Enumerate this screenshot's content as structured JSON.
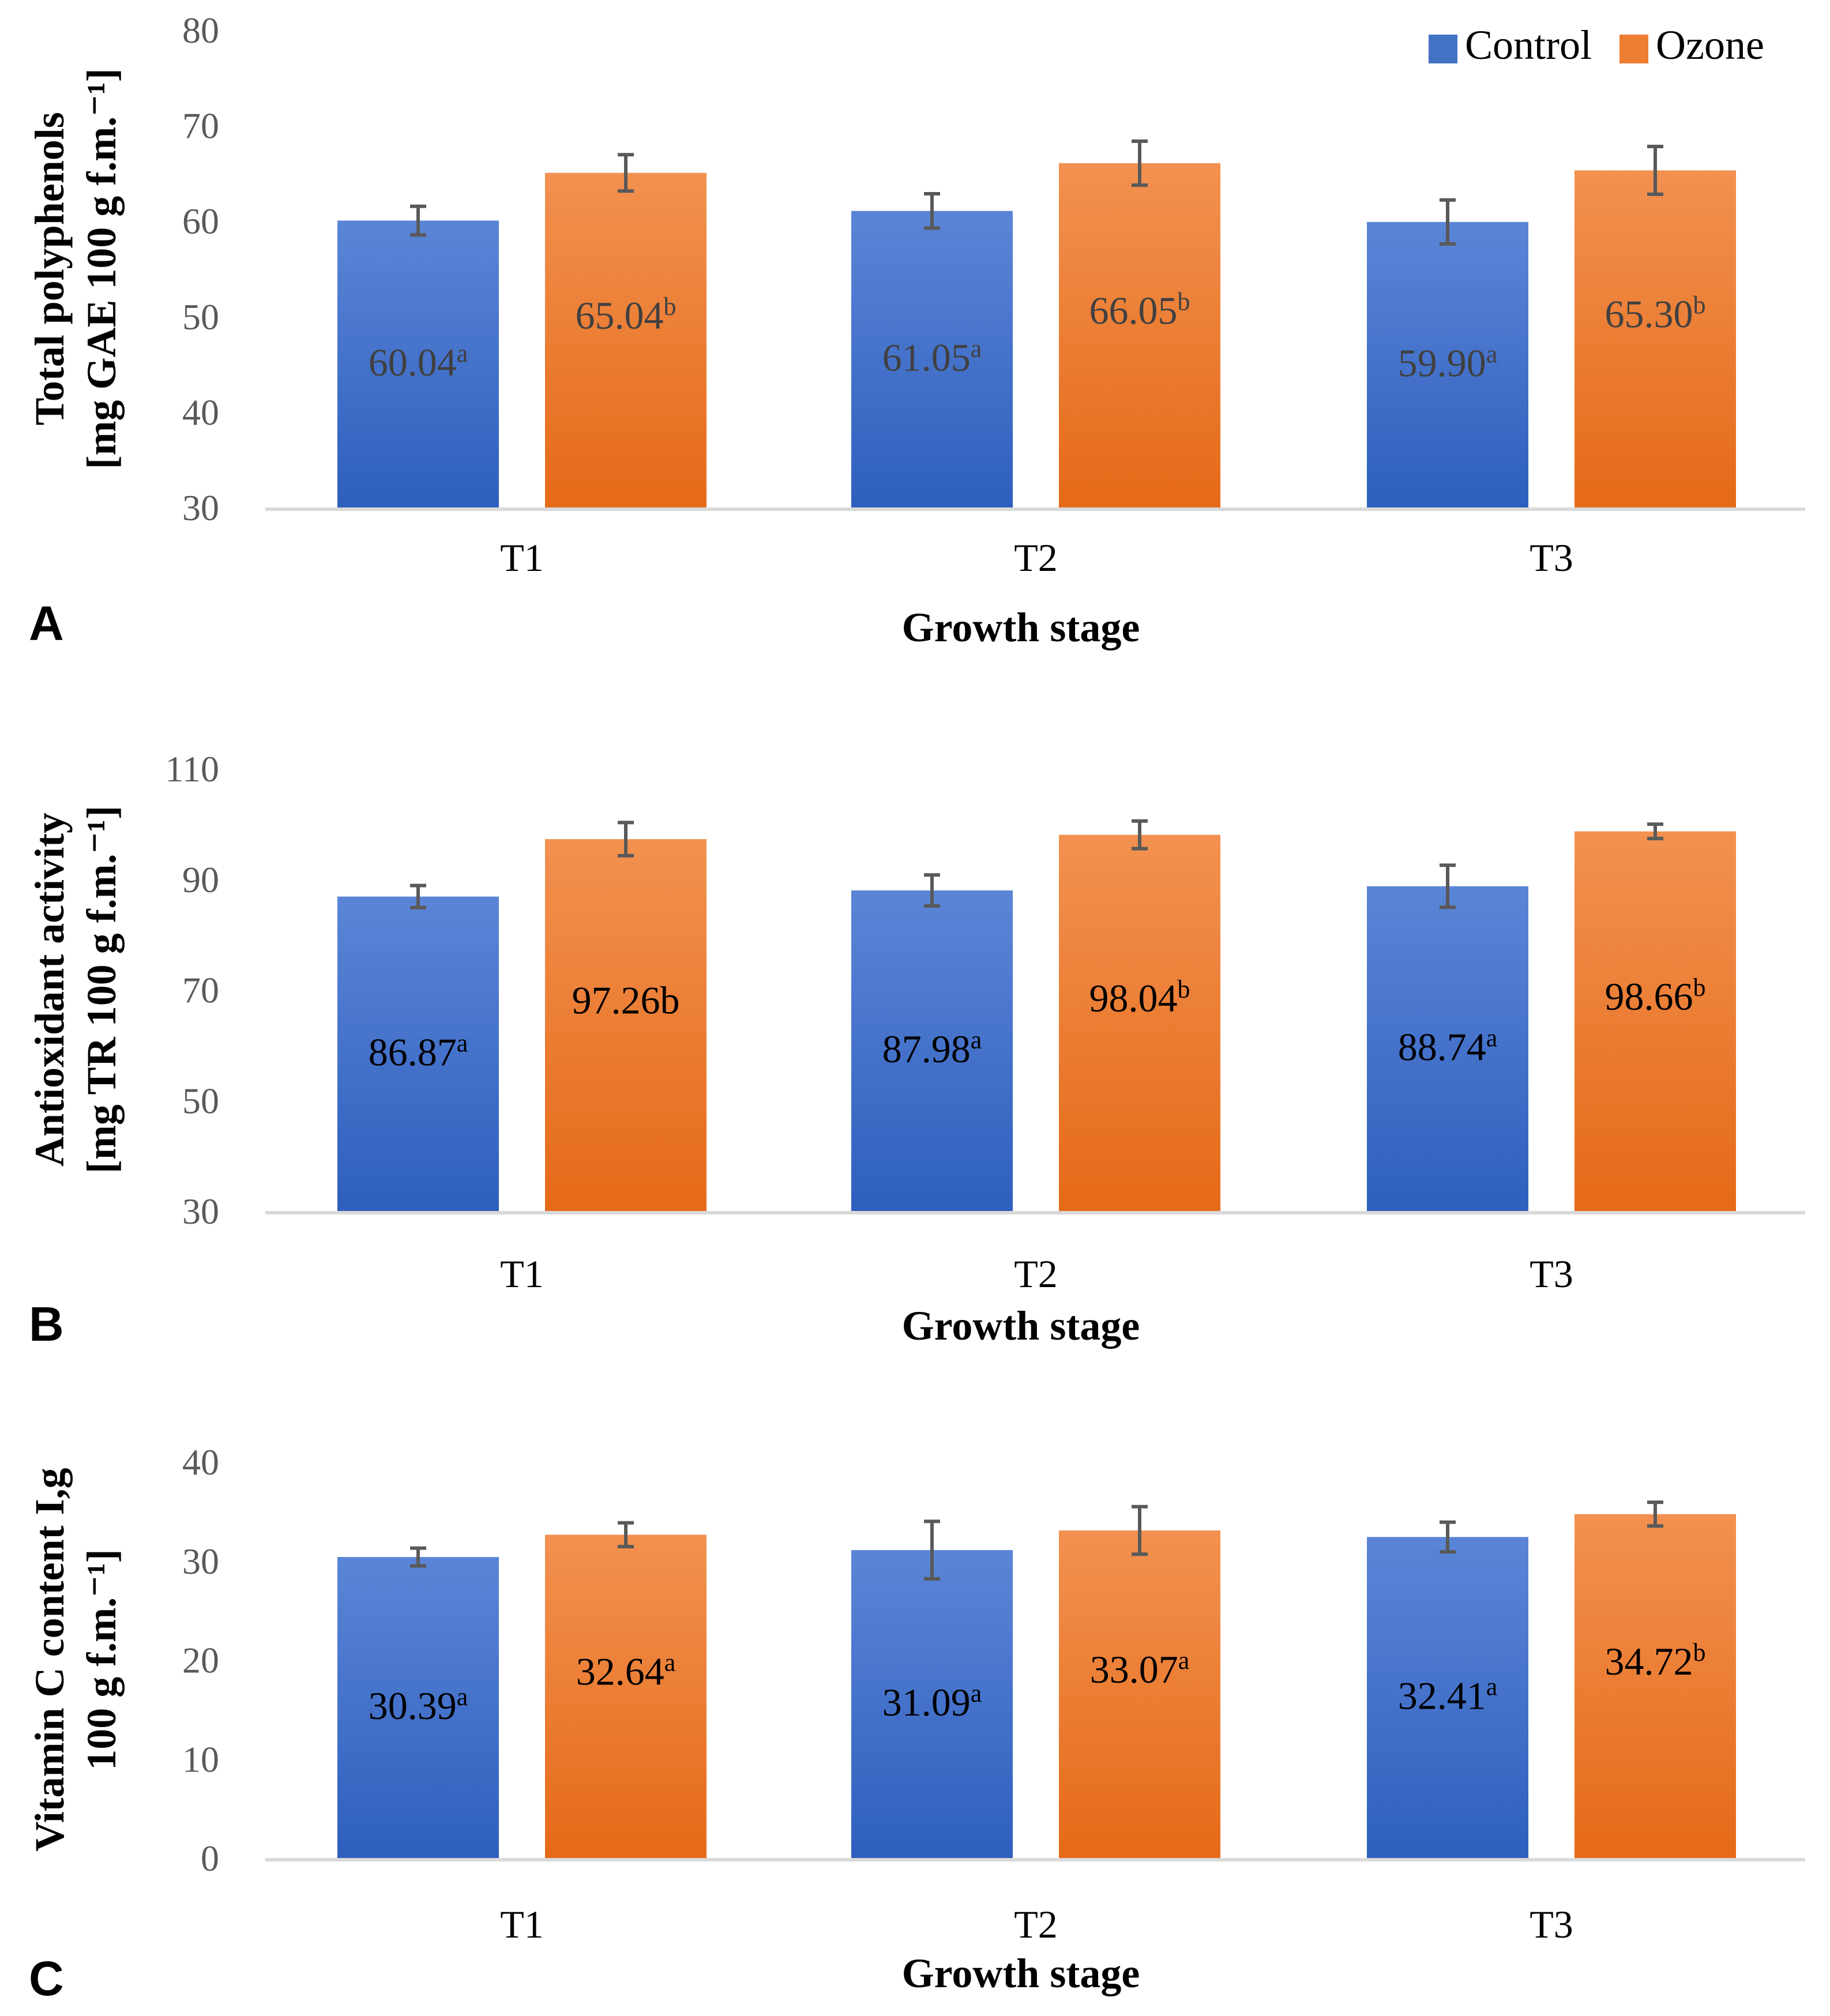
{
  "legend": [
    {
      "name": "Control",
      "color": "#4472C4"
    },
    {
      "name": "Ozone",
      "color": "#ED7D31"
    }
  ],
  "colors": {
    "control_top": "#5B85D6",
    "control_bottom": "#2E5FBE",
    "ozone_top": "#F29150",
    "ozone_bottom": "#E56A18",
    "axis": "#D9D9D9",
    "error_bar": "#595959",
    "text": "#000000",
    "tick_text": "#595959"
  },
  "chart_data": [
    {
      "type": "bar",
      "panel_label": "A",
      "categories": [
        "T1",
        "T2",
        "T3"
      ],
      "series": [
        {
          "name": "Control",
          "values": [
            60.04,
            61.05,
            59.9
          ],
          "errors": [
            1.5,
            1.8,
            2.3
          ],
          "labels": [
            "60.04",
            "61.05",
            "59.90"
          ],
          "letters": [
            "a",
            "a",
            "a"
          ]
        },
        {
          "name": "Ozone",
          "values": [
            65.04,
            66.05,
            65.3
          ],
          "errors": [
            1.9,
            2.3,
            2.5
          ],
          "labels": [
            "65.04",
            "66.05",
            "65.30"
          ],
          "letters": [
            "b",
            "b",
            "b"
          ]
        }
      ],
      "ylim": [
        30,
        80
      ],
      "yticks": [
        30,
        40,
        50,
        60,
        70,
        80
      ],
      "xlabel": "Growth stage",
      "ylabel_lines": [
        "Total polyphenols",
        "[mg GAE 100 g f.m.⁻¹]"
      ],
      "label_color": "#404040"
    },
    {
      "type": "bar",
      "panel_label": "B",
      "categories": [
        "T1",
        "T2",
        "T3"
      ],
      "series": [
        {
          "name": "Control",
          "values": [
            86.87,
            87.98,
            88.74
          ],
          "errors": [
            2.0,
            2.8,
            3.8
          ],
          "labels": [
            "86.87",
            "87.98",
            "88.74"
          ],
          "letters": [
            "a",
            "a",
            "a"
          ]
        },
        {
          "name": "Ozone",
          "values": [
            97.26,
            98.04,
            98.66
          ],
          "errors": [
            3.0,
            2.5,
            1.3
          ],
          "labels": [
            "97.26b",
            "98.04",
            "98.66"
          ],
          "letters": [
            "",
            "b",
            "b"
          ]
        }
      ],
      "ylim": [
        30,
        110
      ],
      "yticks": [
        30,
        50,
        70,
        90,
        110
      ],
      "xlabel": "Growth stage",
      "ylabel_lines": [
        "Antioxidant activity",
        "[mg TR 100 g f.m.⁻¹]"
      ],
      "label_color": "#000000"
    },
    {
      "type": "bar",
      "panel_label": "C",
      "categories": [
        "T1",
        "T2",
        "T3"
      ],
      "series": [
        {
          "name": "Control",
          "values": [
            30.39,
            31.09,
            32.41
          ],
          "errors": [
            0.9,
            2.9,
            1.5
          ],
          "labels": [
            "30.39",
            "31.09",
            "32.41"
          ],
          "letters": [
            "a",
            "a",
            "a"
          ]
        },
        {
          "name": "Ozone",
          "values": [
            32.64,
            33.07,
            34.72
          ],
          "errors": [
            1.2,
            2.4,
            1.2
          ],
          "labels": [
            "32.64",
            "33.07",
            "34.72"
          ],
          "letters": [
            "a",
            "a",
            "b"
          ]
        }
      ],
      "ylim": [
        0,
        40
      ],
      "yticks": [
        0,
        10,
        20,
        30,
        40
      ],
      "xlabel": "Growth stage",
      "ylabel_lines": [
        "Vitamin C content Ι,g",
        "100 g f.m.⁻¹]"
      ],
      "label_color": "#000000"
    }
  ]
}
